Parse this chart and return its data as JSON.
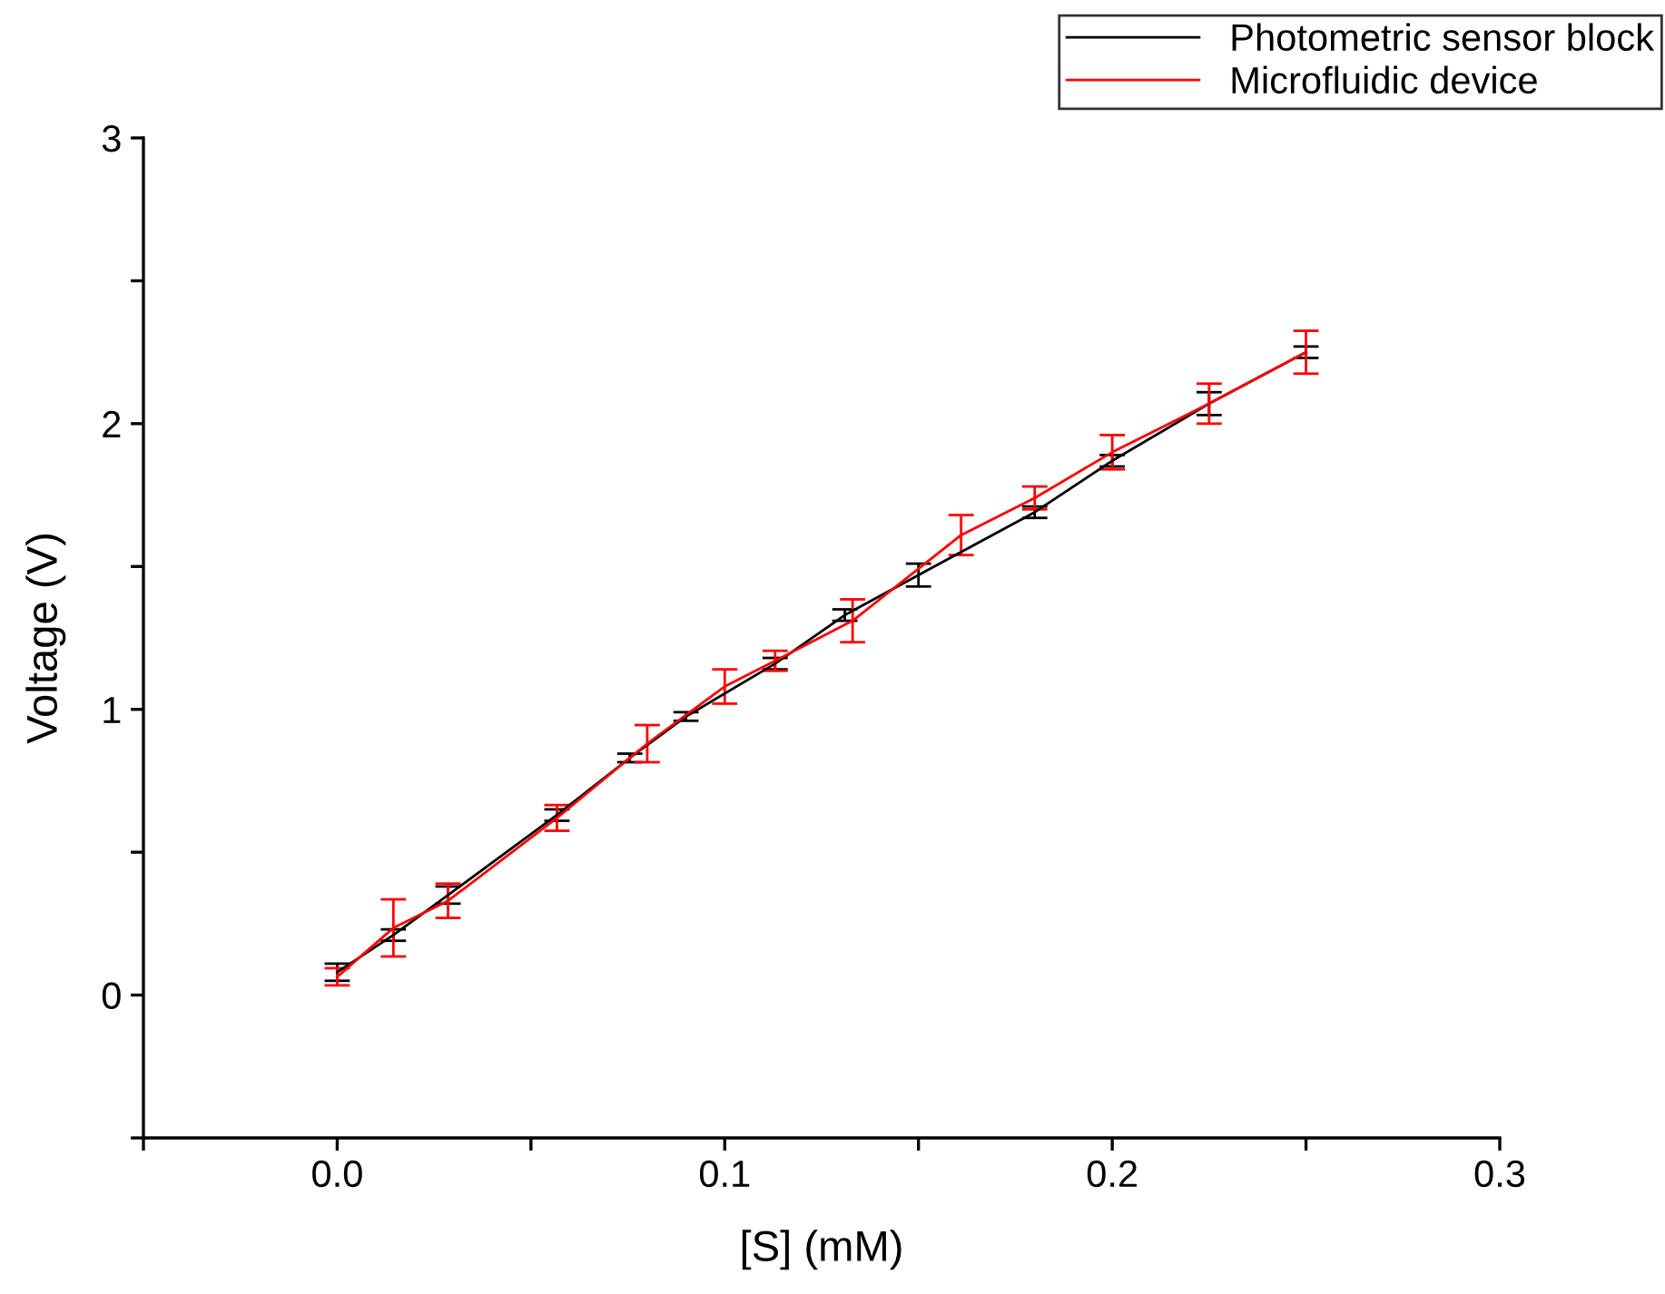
{
  "chart_data": {
    "type": "line",
    "xlabel": "[S] (mM)",
    "ylabel": "Voltage (V)",
    "xlim": [
      -0.05,
      0.3
    ],
    "ylim": [
      -0.5,
      3
    ],
    "xticks": [
      {
        "value": -0.05,
        "label": null
      },
      {
        "value": 0,
        "label": "0.0"
      },
      {
        "value": 0.05,
        "label": null
      },
      0.1,
      {
        "value": 0.15,
        "label": null
      },
      0.2,
      {
        "value": 0.25,
        "label": null
      },
      0.3
    ],
    "yticks": [
      {
        "value": -0.5,
        "label": null
      },
      0,
      {
        "value": 0.5,
        "label": null
      },
      1,
      {
        "value": 1.5,
        "label": null
      },
      2,
      {
        "value": 2.5,
        "label": null
      },
      3
    ],
    "grid": false,
    "legend": "top right",
    "marker": "none",
    "line_style": "solid",
    "series": [
      {
        "name": "Photometric sensor block",
        "color": "#000000",
        "x": [
          0,
          0.0145,
          0.0286,
          0.0567,
          0.0755,
          0.09,
          0.113,
          0.131,
          0.15,
          0.18,
          0.2,
          0.225,
          0.25
        ],
        "values": [
          0.08,
          0.21,
          0.35,
          0.63,
          0.83,
          0.975,
          1.16,
          1.33,
          1.47,
          1.69,
          1.87,
          2.07,
          2.25
        ],
        "errors": [
          0.03,
          0.02,
          0.03,
          0.02,
          0.015,
          0.015,
          0.02,
          0.02,
          0.04,
          0.02,
          0.02,
          0.04,
          0.02
        ]
      },
      {
        "name": "Microfluidic device",
        "color": "#ff0000",
        "x": [
          0,
          0.0145,
          0.0286,
          0.0567,
          0.08,
          0.1,
          0.113,
          0.133,
          0.161,
          0.18,
          0.2,
          0.225,
          0.25
        ],
        "values": [
          0.064,
          0.235,
          0.33,
          0.62,
          0.88,
          1.08,
          1.17,
          1.31,
          1.61,
          1.74,
          1.9,
          2.07,
          2.25
        ],
        "errors": [
          0.03,
          0.1,
          0.06,
          0.045,
          0.065,
          0.06,
          0.035,
          0.075,
          0.07,
          0.04,
          0.06,
          0.07,
          0.075
        ]
      }
    ]
  }
}
